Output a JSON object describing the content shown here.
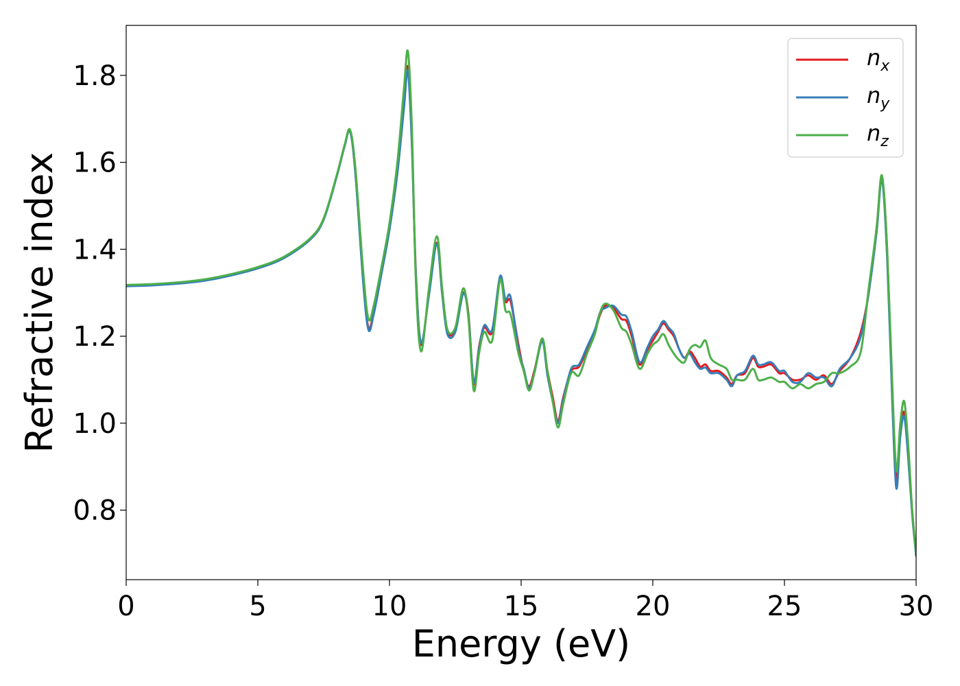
{
  "chart_data": {
    "type": "line",
    "title": "",
    "xlabel": "Energy (eV)",
    "ylabel": "Refractive index",
    "xlim": [
      0,
      30
    ],
    "ylim": [
      0.64,
      1.915
    ],
    "xticks": [
      0,
      5,
      10,
      15,
      20,
      25,
      30
    ],
    "yticks": [
      0.8,
      1.0,
      1.2,
      1.4,
      1.6,
      1.8
    ],
    "xtick_labels": [
      "0",
      "5",
      "10",
      "15",
      "20",
      "25",
      "30"
    ],
    "ytick_labels": [
      "0.8",
      "1.0",
      "1.2",
      "1.4",
      "1.6",
      "1.8"
    ],
    "grid": false,
    "legend": {
      "placement": "top-right"
    },
    "colors": {
      "nx": "#e41a1c",
      "ny": "#377eb8",
      "nz": "#4daf4a"
    },
    "series": [
      {
        "name": "n_x",
        "label_base": "n",
        "label_sub": "x",
        "color": "#e41a1c",
        "x": [
          0,
          1,
          2,
          3,
          4,
          5,
          6,
          7,
          7.5,
          8,
          8.3,
          8.5,
          8.7,
          9.0,
          9.2,
          9.4,
          9.7,
          10.0,
          10.3,
          10.55,
          10.7,
          10.85,
          11.0,
          11.2,
          11.5,
          11.8,
          12.0,
          12.2,
          12.5,
          12.8,
          13.0,
          13.2,
          13.4,
          13.6,
          13.9,
          14.2,
          14.4,
          14.6,
          14.9,
          15.1,
          15.3,
          15.5,
          15.8,
          16.0,
          16.2,
          16.4,
          16.6,
          16.9,
          17.2,
          17.5,
          17.8,
          18.0,
          18.2,
          18.5,
          18.8,
          19.0,
          19.2,
          19.5,
          19.8,
          20.0,
          20.2,
          20.4,
          20.6,
          20.8,
          21.0,
          21.2,
          21.4,
          21.6,
          21.8,
          22.0,
          22.2,
          22.5,
          22.8,
          23.0,
          23.2,
          23.5,
          23.8,
          24.0,
          24.2,
          24.5,
          24.8,
          25.0,
          25.3,
          25.6,
          25.9,
          26.2,
          26.5,
          26.8,
          27.1,
          27.5,
          27.9,
          28.2,
          28.5,
          28.7,
          28.9,
          29.1,
          29.25,
          29.4,
          29.55,
          29.7,
          29.85,
          30.0
        ],
        "y": [
          1.317,
          1.319,
          1.323,
          1.33,
          1.342,
          1.358,
          1.382,
          1.425,
          1.47,
          1.57,
          1.64,
          1.672,
          1.58,
          1.33,
          1.22,
          1.255,
          1.35,
          1.45,
          1.58,
          1.73,
          1.82,
          1.65,
          1.35,
          1.18,
          1.3,
          1.415,
          1.3,
          1.21,
          1.215,
          1.3,
          1.25,
          1.09,
          1.175,
          1.22,
          1.21,
          1.335,
          1.28,
          1.28,
          1.18,
          1.12,
          1.085,
          1.12,
          1.19,
          1.12,
          1.06,
          1.005,
          1.06,
          1.12,
          1.13,
          1.17,
          1.21,
          1.25,
          1.27,
          1.265,
          1.24,
          1.235,
          1.2,
          1.135,
          1.17,
          1.19,
          1.21,
          1.23,
          1.215,
          1.2,
          1.17,
          1.15,
          1.165,
          1.15,
          1.13,
          1.135,
          1.12,
          1.12,
          1.105,
          1.09,
          1.11,
          1.115,
          1.15,
          1.13,
          1.13,
          1.135,
          1.115,
          1.115,
          1.1,
          1.1,
          1.11,
          1.1,
          1.11,
          1.09,
          1.12,
          1.15,
          1.21,
          1.3,
          1.45,
          1.565,
          1.4,
          1.05,
          0.87,
          0.98,
          1.025,
          0.93,
          0.8,
          0.695
        ]
      },
      {
        "name": "n_y",
        "label_base": "n",
        "label_sub": "y",
        "color": "#377eb8",
        "x": [
          0,
          1,
          2,
          3,
          4,
          5,
          6,
          7,
          7.5,
          8,
          8.3,
          8.5,
          8.7,
          9.0,
          9.2,
          9.4,
          9.7,
          10.0,
          10.3,
          10.55,
          10.7,
          10.85,
          11.0,
          11.2,
          11.5,
          11.8,
          12.0,
          12.2,
          12.5,
          12.8,
          13.0,
          13.2,
          13.4,
          13.6,
          13.9,
          14.2,
          14.4,
          14.6,
          14.9,
          15.1,
          15.3,
          15.5,
          15.8,
          16.0,
          16.2,
          16.4,
          16.6,
          16.9,
          17.2,
          17.5,
          17.8,
          18.0,
          18.2,
          18.5,
          18.8,
          19.0,
          19.2,
          19.5,
          19.8,
          20.0,
          20.2,
          20.4,
          20.6,
          20.8,
          21.0,
          21.2,
          21.4,
          21.6,
          21.8,
          22.0,
          22.2,
          22.5,
          22.8,
          23.0,
          23.2,
          23.5,
          23.8,
          24.0,
          24.2,
          24.5,
          24.8,
          25.0,
          25.3,
          25.6,
          25.9,
          26.2,
          26.5,
          26.8,
          27.1,
          27.5,
          27.9,
          28.2,
          28.5,
          28.7,
          28.9,
          29.1,
          29.25,
          29.4,
          29.55,
          29.7,
          29.85,
          30.0
        ],
        "y": [
          1.315,
          1.317,
          1.321,
          1.328,
          1.34,
          1.356,
          1.38,
          1.423,
          1.468,
          1.568,
          1.638,
          1.671,
          1.578,
          1.325,
          1.215,
          1.25,
          1.345,
          1.445,
          1.575,
          1.725,
          1.81,
          1.64,
          1.345,
          1.185,
          1.295,
          1.412,
          1.298,
          1.205,
          1.21,
          1.298,
          1.245,
          1.095,
          1.17,
          1.225,
          1.215,
          1.338,
          1.285,
          1.29,
          1.17,
          1.125,
          1.08,
          1.115,
          1.188,
          1.11,
          1.05,
          1.0,
          1.055,
          1.125,
          1.135,
          1.175,
          1.215,
          1.255,
          1.265,
          1.27,
          1.25,
          1.245,
          1.21,
          1.14,
          1.175,
          1.2,
          1.215,
          1.235,
          1.22,
          1.205,
          1.17,
          1.15,
          1.16,
          1.14,
          1.125,
          1.128,
          1.115,
          1.115,
          1.1,
          1.085,
          1.11,
          1.12,
          1.155,
          1.135,
          1.135,
          1.14,
          1.12,
          1.12,
          1.095,
          1.095,
          1.115,
          1.105,
          1.105,
          1.085,
          1.125,
          1.15,
          1.2,
          1.3,
          1.44,
          1.56,
          1.38,
          1.04,
          0.85,
          0.97,
          1.015,
          0.92,
          0.79,
          0.695
        ]
      },
      {
        "name": "n_z",
        "label_base": "n",
        "label_sub": "z",
        "color": "#4daf4a",
        "x": [
          0,
          1,
          2,
          3,
          4,
          5,
          6,
          7,
          7.5,
          8,
          8.3,
          8.5,
          8.7,
          9.0,
          9.2,
          9.4,
          9.7,
          10.0,
          10.3,
          10.55,
          10.7,
          10.85,
          11.0,
          11.2,
          11.5,
          11.8,
          12.0,
          12.2,
          12.5,
          12.8,
          13.0,
          13.2,
          13.4,
          13.6,
          13.9,
          14.2,
          14.4,
          14.6,
          14.9,
          15.1,
          15.3,
          15.5,
          15.8,
          16.0,
          16.2,
          16.4,
          16.6,
          16.9,
          17.2,
          17.5,
          17.8,
          18.0,
          18.2,
          18.5,
          18.8,
          19.0,
          19.2,
          19.5,
          19.8,
          20.0,
          20.2,
          20.4,
          20.6,
          20.8,
          21.0,
          21.2,
          21.4,
          21.6,
          21.8,
          22.0,
          22.2,
          22.5,
          22.8,
          23.0,
          23.2,
          23.5,
          23.8,
          24.0,
          24.2,
          24.5,
          24.8,
          25.0,
          25.3,
          25.6,
          25.9,
          26.2,
          26.5,
          26.8,
          27.1,
          27.5,
          27.9,
          28.2,
          28.5,
          28.7,
          28.9,
          29.1,
          29.25,
          29.4,
          29.55,
          29.7,
          29.85,
          30.0
        ],
        "y": [
          1.318,
          1.32,
          1.324,
          1.331,
          1.343,
          1.359,
          1.383,
          1.426,
          1.471,
          1.571,
          1.641,
          1.675,
          1.59,
          1.35,
          1.24,
          1.27,
          1.36,
          1.46,
          1.6,
          1.77,
          1.855,
          1.68,
          1.33,
          1.165,
          1.31,
          1.43,
          1.31,
          1.215,
          1.22,
          1.31,
          1.24,
          1.075,
          1.16,
          1.21,
          1.19,
          1.33,
          1.26,
          1.25,
          1.16,
          1.12,
          1.075,
          1.115,
          1.195,
          1.12,
          1.05,
          0.99,
          1.045,
          1.115,
          1.11,
          1.16,
          1.205,
          1.255,
          1.275,
          1.26,
          1.22,
          1.21,
          1.18,
          1.125,
          1.16,
          1.18,
          1.19,
          1.205,
          1.18,
          1.16,
          1.145,
          1.14,
          1.17,
          1.18,
          1.175,
          1.19,
          1.15,
          1.135,
          1.125,
          1.1,
          1.1,
          1.1,
          1.125,
          1.1,
          1.1,
          1.105,
          1.095,
          1.095,
          1.08,
          1.09,
          1.08,
          1.09,
          1.095,
          1.115,
          1.115,
          1.13,
          1.165,
          1.31,
          1.45,
          1.57,
          1.4,
          1.08,
          0.89,
          1.0,
          1.05,
          0.95,
          0.8,
          0.7
        ]
      }
    ]
  }
}
